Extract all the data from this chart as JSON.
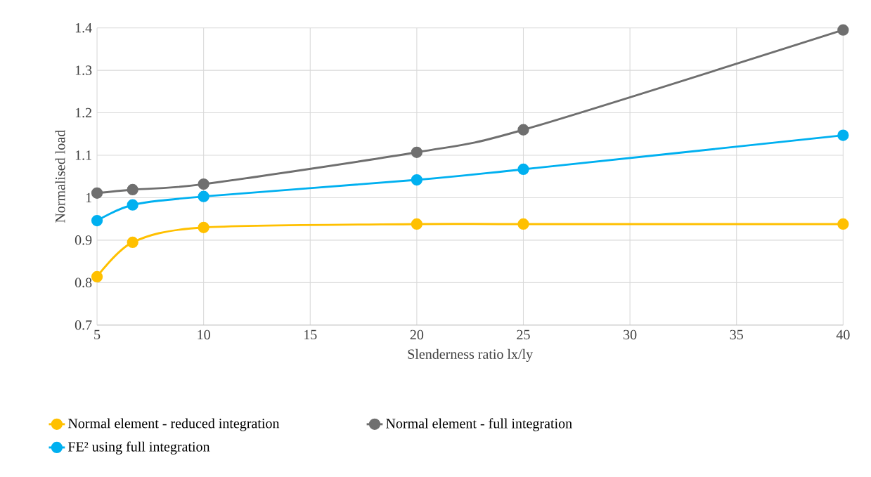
{
  "chart_data": {
    "type": "line",
    "xlabel": "Slenderness ratio lx/ly",
    "ylabel": "Normalised load",
    "x": [
      5,
      6.67,
      10,
      20,
      25,
      40
    ],
    "series": [
      {
        "name": "Normal element - reduced integration",
        "color": "#ffc000",
        "values": [
          0.814,
          0.895,
          0.93,
          0.938,
          0.938,
          0.938
        ]
      },
      {
        "name": "Normal element - full integration",
        "color": "#6f6f6f",
        "values": [
          1.011,
          1.019,
          1.032,
          1.107,
          1.16,
          1.395
        ]
      },
      {
        "name": "FE² using full integration",
        "color": "#00b0f0",
        "values": [
          0.946,
          0.983,
          1.003,
          1.042,
          1.067,
          1.147
        ]
      }
    ],
    "xlim": [
      5,
      40
    ],
    "xticks": [
      5,
      10,
      15,
      20,
      25,
      30,
      35,
      40
    ],
    "ylim": [
      0.7,
      1.4
    ],
    "yticks": [
      0.7,
      0.8,
      0.9,
      1,
      1.1,
      1.2,
      1.3,
      1.4
    ],
    "grid": true,
    "legend": "bottom",
    "marker": "circle",
    "line_style": "solid"
  }
}
